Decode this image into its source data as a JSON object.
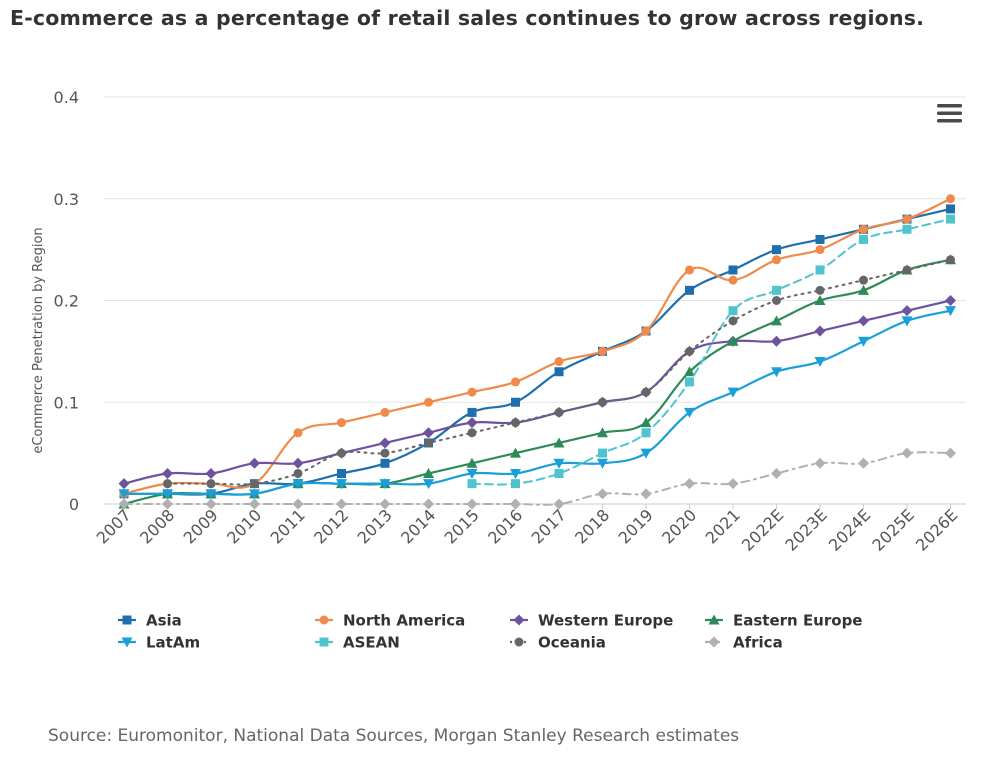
{
  "title": "E-commerce as a percentage of retail sales continues to grow across regions.",
  "source": "Source: Euromonitor, National Data Sources, Morgan Stanley Research estimates",
  "menu_icon": "hamburger-menu-icon",
  "chart_data": {
    "type": "line",
    "title": "E-commerce as a percentage of retail sales continues to grow across regions.",
    "xlabel": "",
    "ylabel": "eCommerce Penetration by Region",
    "ylim": [
      0,
      0.4
    ],
    "yticks": [
      0,
      0.1,
      0.2,
      0.3,
      0.4
    ],
    "ytick_labels": [
      "0",
      "0.1",
      "0.2",
      "0.3",
      "0.4"
    ],
    "grid": true,
    "legend_position": "bottom",
    "categories": [
      "2007",
      "2008",
      "2009",
      "2010",
      "2011",
      "2012",
      "2013",
      "2014",
      "2015",
      "2016",
      "2017",
      "2018",
      "2019",
      "2020",
      "2021",
      "2022E",
      "2023E",
      "2024E",
      "2025E",
      "2026E"
    ],
    "series": [
      {
        "name": "Asia",
        "color": "#1f6faf",
        "marker": "square",
        "dash": "solid",
        "values": [
          0.01,
          0.01,
          0.01,
          0.02,
          0.02,
          0.03,
          0.04,
          0.06,
          0.09,
          0.1,
          0.13,
          0.15,
          0.17,
          0.21,
          0.23,
          0.25,
          0.26,
          0.27,
          0.28,
          0.29
        ]
      },
      {
        "name": "North America",
        "color": "#f08a4b",
        "marker": "circle",
        "dash": "solid",
        "values": [
          0.01,
          0.02,
          0.02,
          0.02,
          0.07,
          0.08,
          0.09,
          0.1,
          0.11,
          0.12,
          0.14,
          0.15,
          0.17,
          0.23,
          0.22,
          0.24,
          0.25,
          0.27,
          0.28,
          0.3
        ]
      },
      {
        "name": "Western Europe",
        "color": "#6e52a0",
        "marker": "diamond",
        "dash": "solid",
        "values": [
          0.02,
          0.03,
          0.03,
          0.04,
          0.04,
          0.05,
          0.06,
          0.07,
          0.08,
          0.08,
          0.09,
          0.1,
          0.11,
          0.15,
          0.16,
          0.16,
          0.17,
          0.18,
          0.19,
          0.2
        ]
      },
      {
        "name": "Eastern Europe",
        "color": "#2e8b57",
        "marker": "triangle-up",
        "dash": "solid",
        "values": [
          0.0,
          0.01,
          0.01,
          0.01,
          0.02,
          0.02,
          0.02,
          0.03,
          0.04,
          0.05,
          0.06,
          0.07,
          0.08,
          0.13,
          0.16,
          0.18,
          0.2,
          0.21,
          0.23,
          0.24
        ]
      },
      {
        "name": "LatAm",
        "color": "#1a9fd8",
        "marker": "triangle-down",
        "dash": "solid",
        "values": [
          0.01,
          0.01,
          0.01,
          0.01,
          0.02,
          0.02,
          0.02,
          0.02,
          0.03,
          0.03,
          0.04,
          0.04,
          0.05,
          0.09,
          0.11,
          0.13,
          0.14,
          0.16,
          0.18,
          0.19
        ]
      },
      {
        "name": "ASEAN",
        "color": "#4fc4cf",
        "marker": "square",
        "dash": "dash",
        "values": [
          null,
          null,
          null,
          null,
          null,
          null,
          null,
          null,
          0.02,
          0.02,
          0.03,
          0.05,
          0.07,
          0.12,
          0.19,
          0.21,
          0.23,
          0.26,
          0.27,
          0.28
        ]
      },
      {
        "name": "Oceania",
        "color": "#666666",
        "marker": "circle",
        "dash": "dot",
        "values": [
          null,
          0.02,
          0.02,
          0.02,
          0.03,
          0.05,
          0.05,
          0.06,
          0.07,
          0.08,
          0.09,
          0.1,
          0.11,
          0.15,
          0.18,
          0.2,
          0.21,
          0.22,
          0.23,
          0.24
        ]
      },
      {
        "name": "Africa",
        "color": "#b0b0b0",
        "marker": "diamond",
        "dash": "dashdot",
        "values": [
          0,
          0,
          0,
          0,
          0,
          0,
          0,
          0,
          0,
          0,
          0,
          0.01,
          0.01,
          0.02,
          0.02,
          0.03,
          0.04,
          0.04,
          0.05,
          0.05
        ]
      }
    ]
  }
}
